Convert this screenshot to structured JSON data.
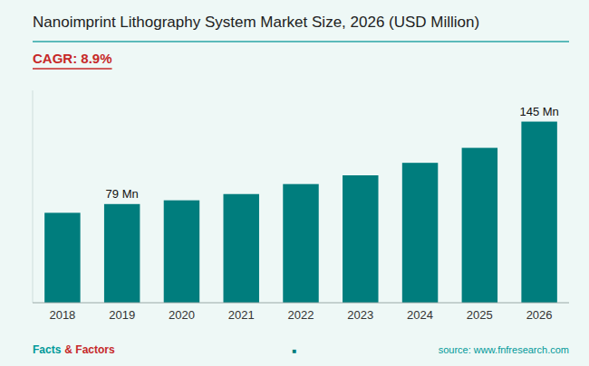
{
  "chart_data": {
    "type": "bar",
    "title": "Nanoimprint Lithography System Market Size, 2026 (USD Million)",
    "subtitle": "CAGR: 8.9%",
    "categories": [
      "2018",
      "2019",
      "2020",
      "2021",
      "2022",
      "2023",
      "2024",
      "2025",
      "2026"
    ],
    "values": [
      72,
      79,
      82,
      87,
      95,
      102,
      112,
      124,
      145
    ],
    "color": "#007d7d",
    "ylim": [
      0,
      170
    ],
    "tick_labels": "x",
    "grid": false,
    "annotations": [
      {
        "text": "79 Mn",
        "category": "2019"
      },
      {
        "text": "145 Mn",
        "category": "2026"
      },
      {
        "text": "source: www.fnfresearch.com"
      },
      {
        "text": "Facts"
      },
      {
        "text": "& Factors"
      },
      {
        "text": "■"
      }
    ]
  }
}
